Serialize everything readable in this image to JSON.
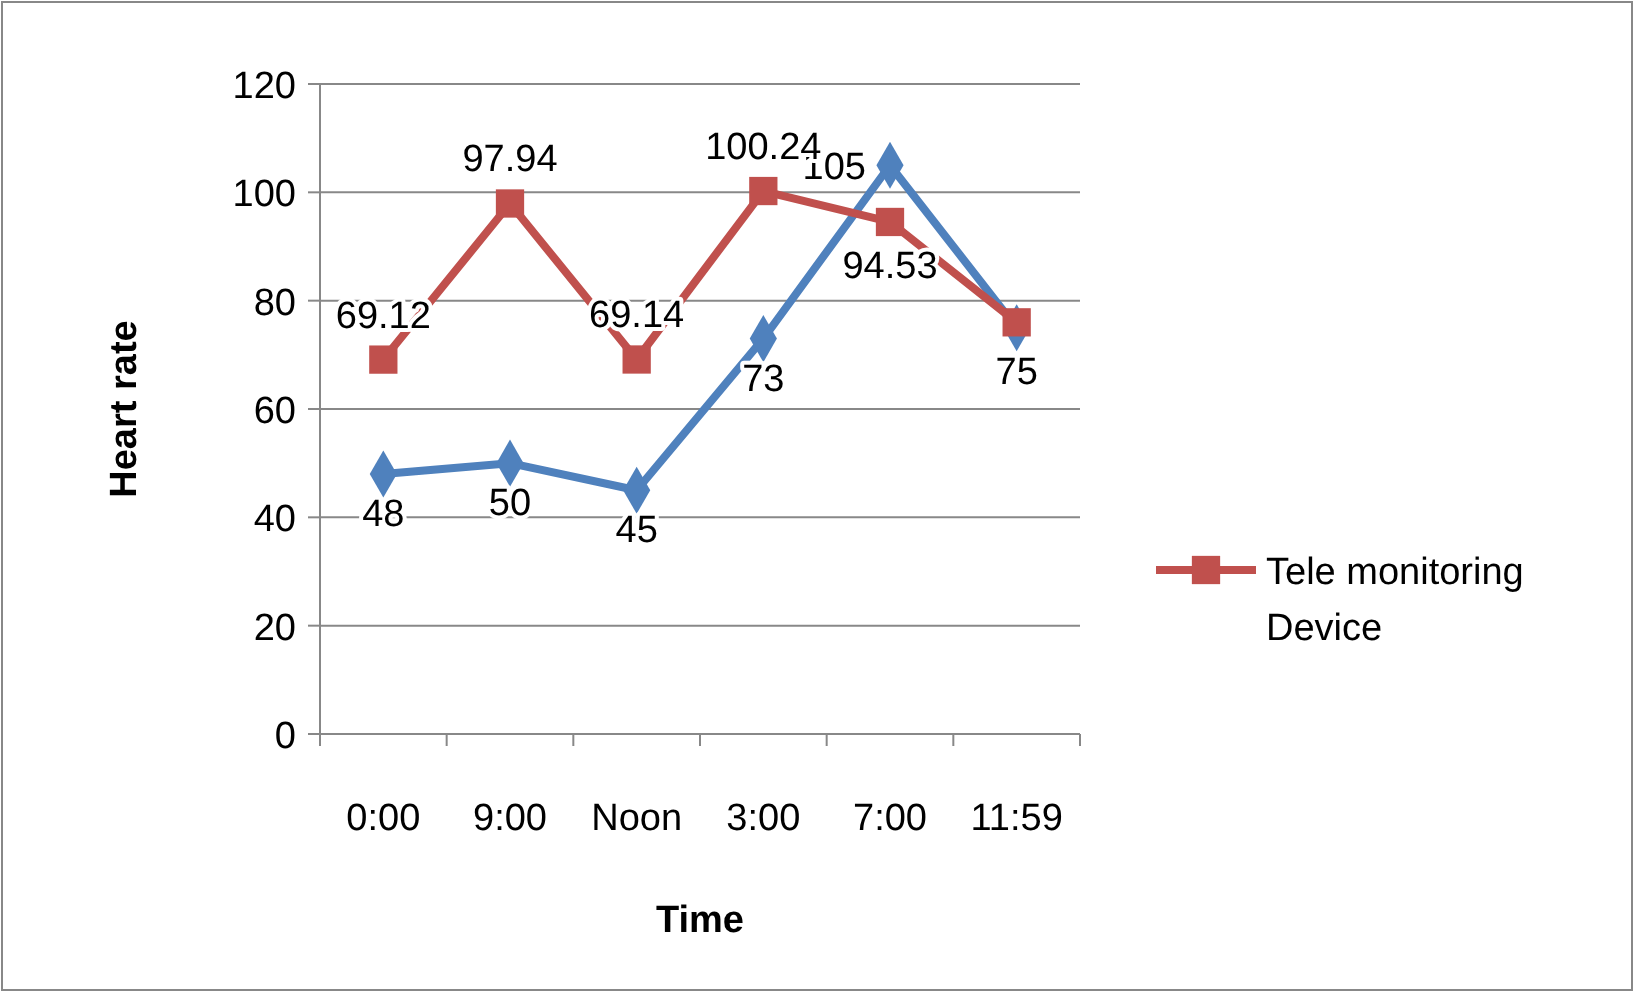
{
  "chart_data": {
    "type": "line",
    "xlabel": "Time",
    "ylabel": "Heart rate",
    "categories": [
      "0:00",
      "9:00",
      "Noon",
      "3:00",
      "7:00",
      "11:59"
    ],
    "series": [
      {
        "color": "#4f81bd",
        "marker": "diamond",
        "values": [
          48,
          50,
          45,
          73,
          105,
          75
        ],
        "value_labels": [
          "48",
          "50",
          "45",
          "73",
          "105",
          "75"
        ]
      },
      {
        "name": "Tele monitoring Device",
        "color": "#c0504d",
        "marker": "square",
        "values": [
          69.12,
          97.94,
          69.14,
          100.24,
          94.53,
          76
        ],
        "value_labels": [
          "69.12",
          "97.94",
          "69.14",
          "100.24",
          "94.53",
          null
        ]
      }
    ],
    "ylim": [
      0,
      120
    ],
    "yticks": [
      0,
      20,
      40,
      60,
      80,
      100,
      120
    ],
    "grid": "y",
    "legend": "right"
  }
}
